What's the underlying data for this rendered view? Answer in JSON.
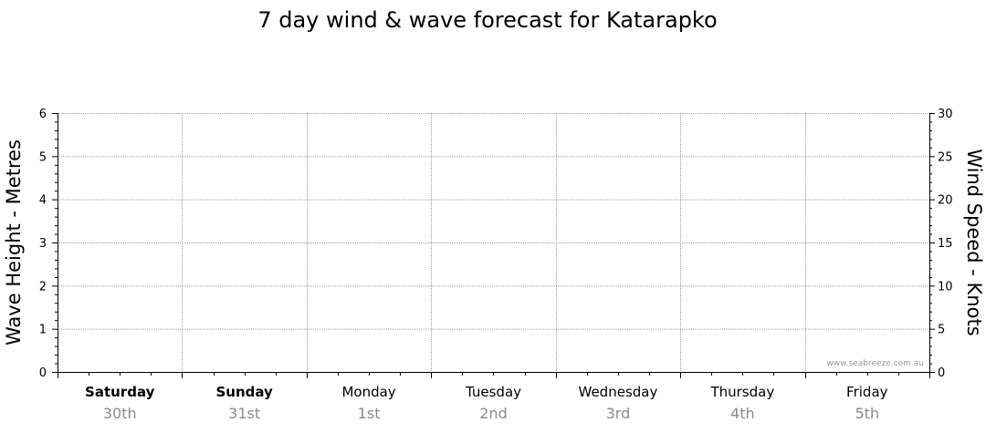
{
  "chart_data": {
    "type": "line",
    "title": "7 day wind & wave forecast for Katarapko",
    "left_axis": {
      "label": "Wave Height - Metres",
      "ylim": [
        0,
        6
      ],
      "ticks": [
        "0",
        "1",
        "2",
        "3",
        "4",
        "5",
        "6"
      ]
    },
    "right_axis": {
      "label": "Wind Speed - Knots",
      "ylim": [
        0,
        30
      ],
      "ticks": [
        "0",
        "5",
        "10",
        "15",
        "20",
        "25",
        "30"
      ]
    },
    "days": [
      {
        "name": "Saturday",
        "date": "30th",
        "bold": true
      },
      {
        "name": "Sunday",
        "date": "31st",
        "bold": true
      },
      {
        "name": "Monday",
        "date": "1st",
        "bold": false
      },
      {
        "name": "Tuesday",
        "date": "2nd",
        "bold": false
      },
      {
        "name": "Wednesday",
        "date": "3rd",
        "bold": false
      },
      {
        "name": "Thursday",
        "date": "4th",
        "bold": false
      },
      {
        "name": "Friday",
        "date": "5th",
        "bold": false
      }
    ],
    "series": [],
    "grid": true,
    "watermark": "www.seabreeze.com.au"
  }
}
